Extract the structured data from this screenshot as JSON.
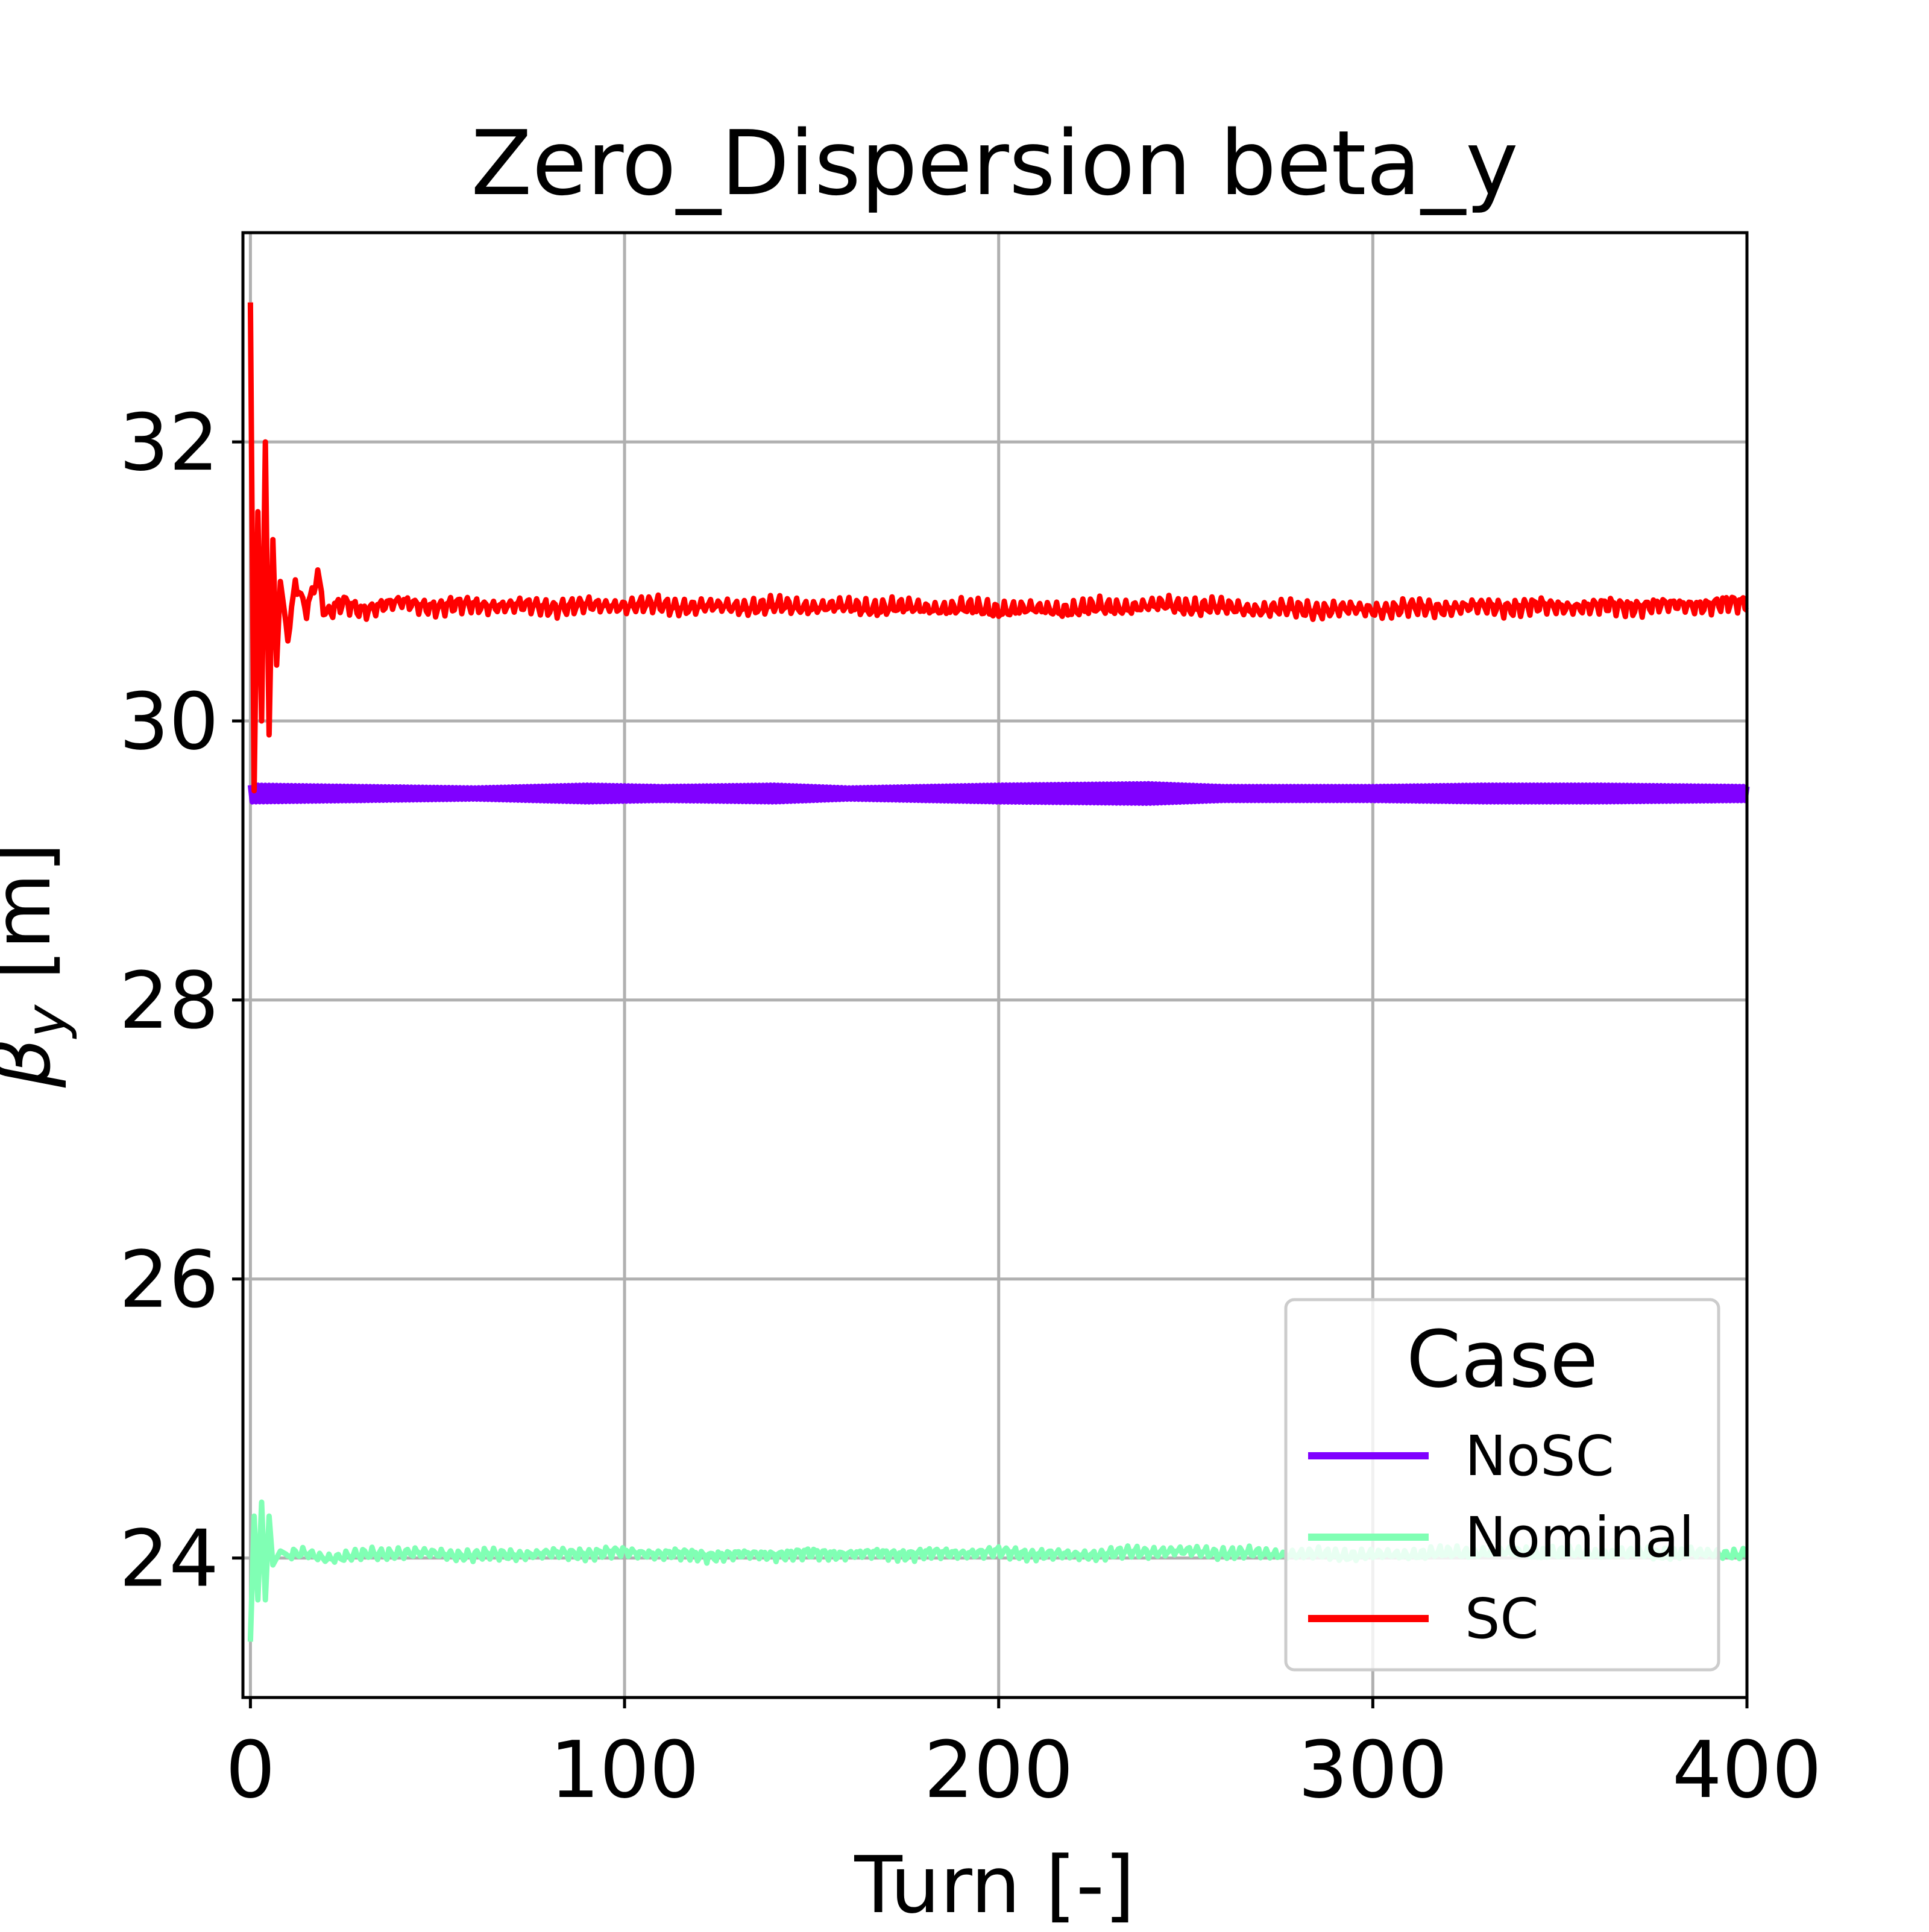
{
  "chart_data": {
    "type": "line",
    "title": "Zero_Dispersion  beta_y",
    "xlabel": "Turn [-]",
    "ylabel_symbol": "β",
    "ylabel_subscript": "y",
    "ylabel_unit": " [m]",
    "xlim": [
      -2,
      400
    ],
    "ylim": [
      23.0,
      33.5
    ],
    "xticks": [
      0,
      100,
      200,
      300,
      400
    ],
    "yticks": [
      24,
      26,
      28,
      30,
      32
    ],
    "grid": true,
    "legend": {
      "title": "Case",
      "placement": "lower-right"
    },
    "series": [
      {
        "name": "NoSC",
        "color": "#8000ff",
        "mean": 29.48,
        "band_halfwidth": [
          0.06,
          0.05,
          0.04,
          0.06,
          0.05,
          0.06,
          0.04,
          0.05,
          0.06,
          0.07,
          0.05,
          0.05,
          0.06,
          0.06,
          0.05
        ],
        "band_x": [
          0,
          30,
          60,
          90,
          110,
          140,
          160,
          180,
          200,
          240,
          260,
          300,
          330,
          360,
          400
        ]
      },
      {
        "name": "Nominal",
        "color": "#80ffb4",
        "x": [
          0,
          1,
          2,
          3,
          4,
          5,
          6,
          8,
          10,
          15,
          20,
          30,
          40,
          50,
          60,
          80,
          100,
          120,
          150,
          180,
          200,
          220,
          245,
          270,
          300,
          330,
          360,
          400
        ],
        "y": [
          23.4,
          24.3,
          23.7,
          24.4,
          23.7,
          24.3,
          23.95,
          24.05,
          24.02,
          24.03,
          24.0,
          24.02,
          24.04,
          24.03,
          24.02,
          24.03,
          24.04,
          24.02,
          24.03,
          24.03,
          24.04,
          24.02,
          24.05,
          24.03,
          24.02,
          24.04,
          24.03,
          24.03
        ],
        "noise_amplitude": 0.06
      },
      {
        "name": "SC",
        "color": "#ff0000",
        "x": [
          0,
          1,
          2,
          3,
          4,
          5,
          6,
          7,
          8,
          10,
          12,
          15,
          18,
          20,
          25,
          30,
          40,
          50,
          60,
          80,
          100,
          120,
          150,
          180,
          200,
          220,
          245,
          270,
          300,
          330,
          360,
          400
        ],
        "y": [
          33.0,
          29.5,
          31.5,
          30.0,
          32.0,
          29.9,
          31.3,
          30.4,
          31.0,
          30.6,
          31.0,
          30.8,
          31.05,
          30.75,
          30.85,
          30.8,
          30.85,
          30.82,
          30.83,
          30.82,
          30.83,
          30.82,
          30.82,
          30.81,
          30.8,
          30.8,
          30.83,
          30.8,
          30.8,
          30.82,
          30.82,
          30.84
        ],
        "noise_amplitude": 0.09
      }
    ]
  }
}
